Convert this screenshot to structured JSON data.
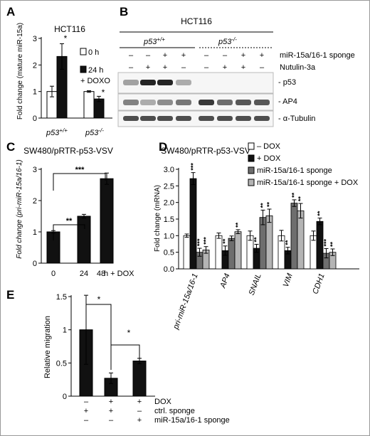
{
  "panels": {
    "A": {
      "letter": "A",
      "title": "HCT116",
      "ylabel": "Fold change (mature miR-15a)",
      "legend": [
        "0 h",
        "24 h",
        "+ DOXO"
      ],
      "groups": [
        "p53+/+",
        "p53-/-"
      ],
      "group_parts": [
        [
          "p53",
          "+/+"
        ],
        [
          "p53",
          "-/-"
        ]
      ],
      "stars": [
        "*",
        "*"
      ]
    },
    "B": {
      "letter": "B",
      "title": "HCT116",
      "genotypes": [
        [
          "p53",
          "+/+"
        ],
        [
          "p53",
          "-/-"
        ]
      ],
      "row_labels": [
        "miR-15a/16-1 sponge",
        "Nutulin-3a"
      ],
      "sponge_signs": [
        "–",
        "–",
        "+",
        "+",
        "–",
        "–",
        "+",
        "+"
      ],
      "nutlin_signs": [
        "–",
        "+",
        "+",
        "–",
        "–",
        "+",
        "+",
        "–"
      ],
      "blot_labels": [
        "- p53",
        "- AP4",
        "- α-Tubulin"
      ],
      "intensities": {
        "p53": [
          0.35,
          0.95,
          0.95,
          0.3,
          0.02,
          0.02,
          0.02,
          0.02
        ],
        "AP4": [
          0.5,
          0.3,
          0.45,
          0.55,
          0.85,
          0.6,
          0.7,
          0.7
        ],
        "tubulin": [
          0.75,
          0.75,
          0.75,
          0.75,
          0.75,
          0.75,
          0.75,
          0.75
        ]
      }
    },
    "C": {
      "letter": "C",
      "title": "SW480/pRTR-p53-VSV",
      "ylabel": "Fold change (pri-miR-15a/16-1)",
      "xlabel_suffix": "h + DOX",
      "sig": [
        "**",
        "***"
      ]
    },
    "D": {
      "letter": "D",
      "title": "SW480/pRTR-p53-VSV",
      "ylabel": "Fold change (mRNA)",
      "stars": [
        [
          "",
          "***",
          "***",
          "***"
        ],
        [
          "",
          "**",
          "",
          "**"
        ],
        [
          "",
          "**",
          "**",
          "**"
        ],
        [
          "",
          "**",
          "**",
          "**"
        ],
        [
          "",
          "**",
          "***",
          "**"
        ]
      ]
    },
    "E": {
      "letter": "E",
      "ylabel": "Relative migration",
      "row_labels": [
        "DOX",
        "ctrl. sponge",
        "miR-15a/16-1 sponge"
      ],
      "signs": [
        [
          "–",
          "+",
          "+"
        ],
        [
          "+",
          "+",
          "–"
        ],
        [
          "–",
          "–",
          "+"
        ]
      ],
      "sig": [
        "*",
        "*"
      ]
    }
  },
  "chart_data": [
    {
      "type": "bar",
      "panel": "A",
      "categories": [
        "p53+/+",
        "p53-/-"
      ],
      "series": [
        {
          "name": "0 h",
          "values": [
            1.0,
            1.0
          ],
          "errors": [
            0.2,
            0.03
          ]
        },
        {
          "name": "24 h + DOXO",
          "values": [
            2.32,
            0.72
          ],
          "errors": [
            0.48,
            0.1
          ]
        }
      ],
      "ylim": [
        0,
        3
      ],
      "yticks": [
        0,
        1,
        2,
        3
      ],
      "color_0": "#ffffff",
      "color_1": "#111111"
    },
    {
      "type": "bar",
      "panel": "C",
      "categories": [
        "0",
        "24",
        "48"
      ],
      "values": [
        1.0,
        1.5,
        2.7
      ],
      "errors": [
        0.04,
        0.06,
        0.18
      ],
      "ylim": [
        0,
        3
      ],
      "yticks": [
        0,
        1,
        2,
        3
      ]
    },
    {
      "type": "bar",
      "panel": "D",
      "categories": [
        "pri-miR-15a/16-1",
        "AP4",
        "SNAIL",
        "VIM",
        "CDH1"
      ],
      "series": [
        {
          "name": "– DOX",
          "color": "#ffffff",
          "values": [
            1.0,
            1.0,
            1.0,
            1.0,
            1.0
          ],
          "errors": [
            0.05,
            0.08,
            0.14,
            0.16,
            0.14
          ]
        },
        {
          "name": "+ DOX",
          "color": "#111111",
          "values": [
            2.72,
            0.55,
            0.62,
            0.55,
            1.43
          ],
          "errors": [
            0.18,
            0.14,
            0.12,
            0.1,
            0.1
          ]
        },
        {
          "name": "miR-15a/16-1 sponge",
          "color": "#6e6e6e",
          "values": [
            0.5,
            0.92,
            1.55,
            1.98,
            0.47
          ],
          "errors": [
            0.12,
            0.07,
            0.22,
            0.1,
            0.14
          ]
        },
        {
          "name": "miR-15a/16-1 sponge + DOX",
          "color": "#b4b4b4",
          "values": [
            0.57,
            1.12,
            1.6,
            1.75,
            0.5
          ],
          "errors": [
            0.1,
            0.06,
            0.2,
            0.22,
            0.1
          ]
        }
      ],
      "ylim": [
        0,
        3
      ],
      "yticks": [
        0,
        0.5,
        1,
        1.5,
        2,
        2.5,
        3
      ]
    },
    {
      "type": "bar",
      "panel": "E",
      "categories": [
        "ctrl. sponge",
        "ctrl. sponge + DOX",
        "miR-15a/16-1 sponge + DOX"
      ],
      "values": [
        1.0,
        0.27,
        0.53
      ],
      "errors": [
        0.52,
        0.08,
        0.04
      ],
      "ylim": [
        0,
        1.5
      ],
      "yticks": [
        0,
        0.5,
        1,
        1.5
      ]
    }
  ]
}
